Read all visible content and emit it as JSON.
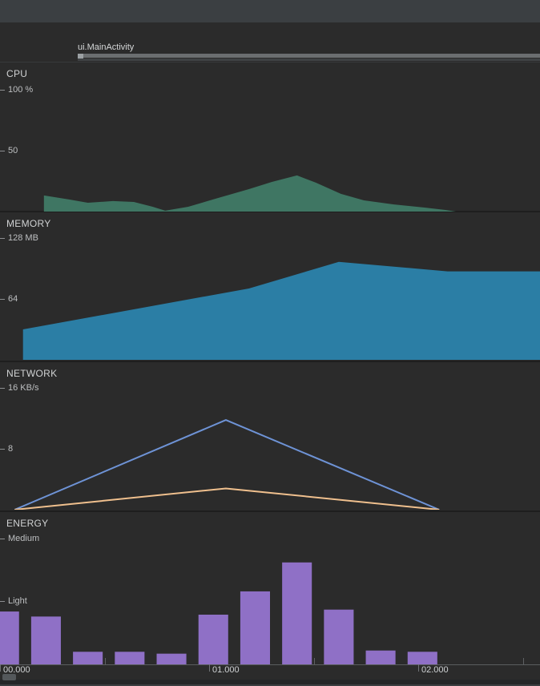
{
  "event_track": {
    "activity_label": "ui.MainActivity"
  },
  "colors": {
    "toolbar": "#3b3f42",
    "background": "#2b2b2b",
    "divider": "#1e1e1e",
    "cpu_area": "#3f7663",
    "memory_area": "#2b7ea5",
    "network_line_blue": "#6e93d6",
    "network_line_orange": "#f0c08e",
    "energy_bar": "#8f70c6",
    "activity_bar": "#6b6e70",
    "axis": "#5a5d5f",
    "scrollbar_thumb": "#54585b"
  },
  "time_axis": {
    "xlim": [
      0,
      2.582
    ],
    "major": [
      {
        "t": 0,
        "label": "00.000"
      },
      {
        "t": 1,
        "label": "01.000"
      },
      {
        "t": 2,
        "label": "02.000"
      }
    ],
    "minor": [
      0.5,
      1.5,
      2.5
    ]
  },
  "chart_data": [
    {
      "id": "cpu",
      "type": "area",
      "title": "CPU",
      "color": "#3f7663",
      "xlim": [
        0,
        2.582
      ],
      "ylim": [
        0,
        122
      ],
      "yticks": [
        {
          "value": 100,
          "label": "100 %"
        },
        {
          "value": 50,
          "label": "50"
        }
      ],
      "points": [
        [
          0.21,
          13.2
        ],
        [
          0.33,
          9.9
        ],
        [
          0.42,
          7.2
        ],
        [
          0.54,
          8.6
        ],
        [
          0.64,
          7.9
        ],
        [
          0.73,
          3.9
        ],
        [
          0.79,
          0.7
        ],
        [
          0.9,
          3.9
        ],
        [
          1.03,
          10.5
        ],
        [
          1.19,
          18.4
        ],
        [
          1.3,
          24.3
        ],
        [
          1.42,
          29.6
        ],
        [
          1.51,
          23.7
        ],
        [
          1.63,
          14.5
        ],
        [
          1.74,
          9.2
        ],
        [
          1.88,
          5.9
        ],
        [
          2.03,
          3.3
        ],
        [
          2.13,
          1.3
        ],
        [
          2.18,
          0
        ]
      ]
    },
    {
      "id": "memory",
      "type": "area",
      "title": "MEMORY",
      "color": "#2b7ea5",
      "xlim": [
        0,
        2.582
      ],
      "ylim": [
        0,
        155
      ],
      "yticks": [
        {
          "value": 128,
          "label": "128 MB"
        },
        {
          "value": 64,
          "label": "64"
        }
      ],
      "points": [
        [
          0.11,
          32
        ],
        [
          1.19,
          75
        ],
        [
          1.62,
          103
        ],
        [
          2.14,
          93
        ],
        [
          2.582,
          93
        ]
      ]
    },
    {
      "id": "network",
      "type": "line",
      "title": "NETWORK",
      "xlim": [
        0,
        2.582
      ],
      "ylim": [
        0,
        19.4
      ],
      "yticks": [
        {
          "value": 16,
          "label": "16 KB/s"
        },
        {
          "value": 8,
          "label": "8"
        }
      ],
      "series": [
        {
          "name": "blue",
          "color": "#6e93d6",
          "points": [
            [
              0.07,
              0
            ],
            [
              1.08,
              11.8
            ],
            [
              2.1,
              0
            ]
          ]
        },
        {
          "name": "orange",
          "color": "#f0c08e",
          "points": [
            [
              0.07,
              0
            ],
            [
              1.08,
              2.8
            ],
            [
              2.1,
              0
            ]
          ]
        }
      ]
    },
    {
      "id": "energy",
      "type": "bar",
      "title": "ENERGY",
      "color": "#8f70c6",
      "xlim": [
        0,
        2.582
      ],
      "ylim": [
        0,
        2.42
      ],
      "bar_width": 0.142,
      "yticks": [
        {
          "value": 2,
          "label": "Medium"
        },
        {
          "value": 1,
          "label": "Light"
        }
      ],
      "points": [
        [
          0.02,
          0.84
        ],
        [
          0.22,
          0.76
        ],
        [
          0.42,
          0.2
        ],
        [
          0.62,
          0.2
        ],
        [
          0.82,
          0.17
        ],
        [
          1.02,
          0.79
        ],
        [
          1.22,
          1.16
        ],
        [
          1.42,
          1.62
        ],
        [
          1.62,
          0.87
        ],
        [
          1.82,
          0.22
        ],
        [
          2.02,
          0.2
        ]
      ]
    }
  ]
}
